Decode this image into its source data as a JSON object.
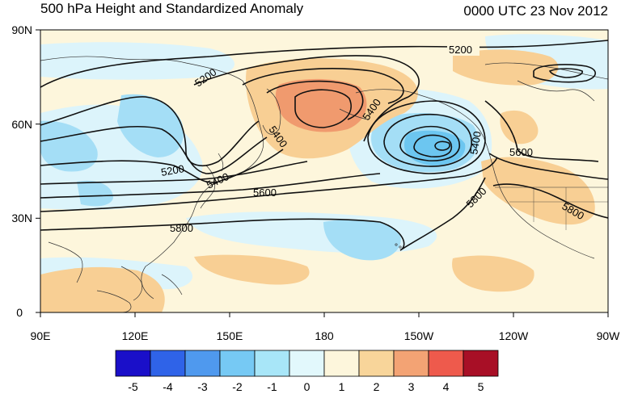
{
  "title": "500 hPa Height and Standardized Anomaly",
  "valid_time": "0000 UTC 23 Nov 2012",
  "lat_ticks": [
    {
      "label": "90N",
      "lat": 90
    },
    {
      "label": "60N",
      "lat": 60
    },
    {
      "label": "30N",
      "lat": 30
    },
    {
      "label": "0",
      "lat": 0
    }
  ],
  "lon_ticks": [
    {
      "label": "90E",
      "lon": 90
    },
    {
      "label": "120E",
      "lon": 120
    },
    {
      "label": "150E",
      "lon": 150
    },
    {
      "label": "180",
      "lon": 180
    },
    {
      "label": "150W",
      "lon": 210
    },
    {
      "label": "120W",
      "lon": 240
    },
    {
      "label": "90W",
      "lon": 270
    }
  ],
  "colorbar": {
    "labels": [
      "-5",
      "-4",
      "-3",
      "-2",
      "-1",
      "0",
      "1",
      "2",
      "3",
      "4",
      "5"
    ],
    "colors": [
      "#1a0fc9",
      "#2f63e8",
      "#4f99ee",
      "#76c9f4",
      "#a8e6f8",
      "#e2f8fc",
      "#fdf6dc",
      "#f8d59a",
      "#f3a374",
      "#ee5a4c",
      "#a80f26"
    ]
  },
  "contour_labels": [
    "5200",
    "5400",
    "5600",
    "5800"
  ],
  "colors": {
    "anomaly_pos_1": "#fdf1d0",
    "anomaly_pos_2": "#f8cf94",
    "anomaly_pos_3": "#f09a6e",
    "anomaly_neg_1": "#dcf4fb",
    "anomaly_neg_2": "#a4def6",
    "anomaly_neg_3": "#6cc6f0"
  }
}
